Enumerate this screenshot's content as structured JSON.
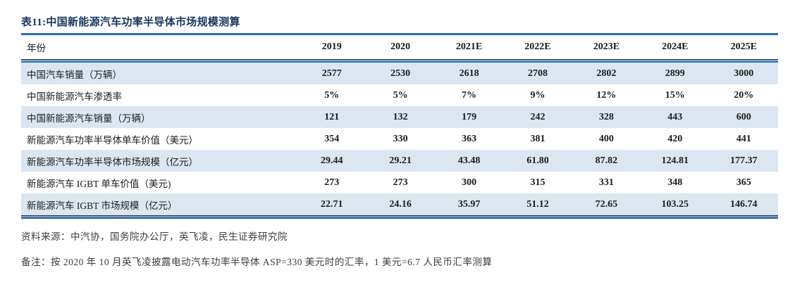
{
  "colors": {
    "accent_navy": "#17375e",
    "rule_blue": "#2e74b5",
    "row_shade": "#dce6f1"
  },
  "table": {
    "title": "表11:中国新能源汽车功率半导体市场规模测算",
    "header": [
      "年份",
      "2019",
      "2020",
      "2021E",
      "2022E",
      "2023E",
      "2024E",
      "2025E"
    ],
    "rows": [
      [
        "中国汽车销量（万辆）",
        "2577",
        "2530",
        "2618",
        "2708",
        "2802",
        "2899",
        "3000"
      ],
      [
        "中国新能源汽车渗透率",
        "5%",
        "5%",
        "7%",
        "9%",
        "12%",
        "15%",
        "20%"
      ],
      [
        "中国新能源汽车销量（万辆）",
        "121",
        "132",
        "179",
        "242",
        "328",
        "443",
        "600"
      ],
      [
        "新能源汽车功率半导体单车价值（美元）",
        "354",
        "330",
        "363",
        "381",
        "400",
        "420",
        "441"
      ],
      [
        "新能源汽车功率半导体市场规模（亿元）",
        "29.44",
        "29.21",
        "43.48",
        "61.80",
        "87.82",
        "124.81",
        "177.37"
      ],
      [
        "新能源汽车 IGBT 单车价值（美元)",
        "273",
        "273",
        "300",
        "315",
        "331",
        "348",
        "365"
      ],
      [
        "新能源汽车 IGBT 市场规模（亿元）",
        "22.71",
        "24.16",
        "35.97",
        "51.12",
        "72.65",
        "103.25",
        "146.74"
      ]
    ],
    "source": "资料来源：中汽协，国务院办公厅，英飞凌，民生证券研究院",
    "note": "备注：按 2020 年 10 月英飞凌披露电动汽车功率半导体 ASP=330 美元时的汇率，1 美元=6.7 人民币汇率测算"
  }
}
